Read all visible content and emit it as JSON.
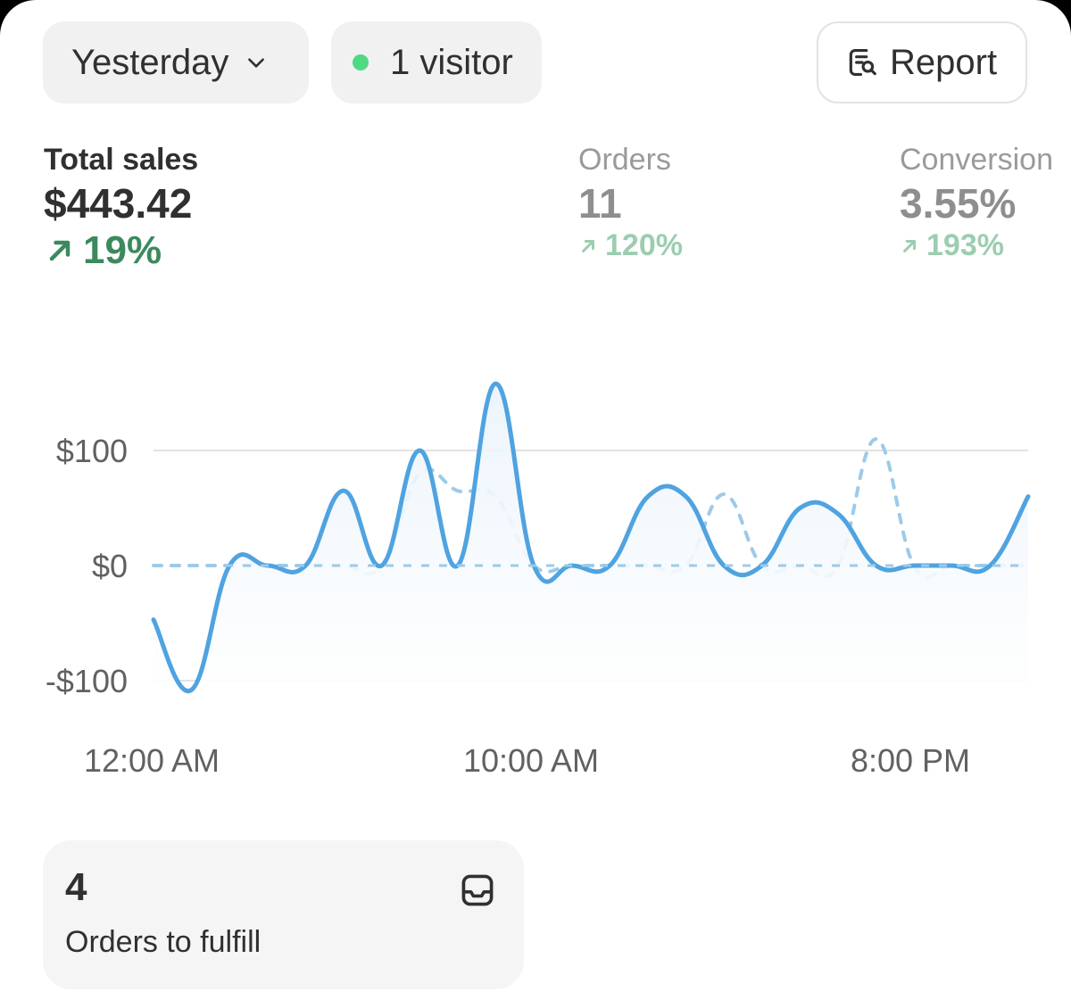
{
  "toolbar": {
    "period_label": "Yesterday",
    "visitors_label": "1 visitor",
    "live_dot_color": "#51d884",
    "report_label": "Report"
  },
  "metrics": {
    "total_sales": {
      "label": "Total sales",
      "value": "$443.42",
      "change": "19%",
      "direction": "up",
      "color": "#3b8a5d"
    },
    "orders": {
      "label": "Orders",
      "value": "11",
      "change": "120%",
      "direction": "up"
    },
    "conversion": {
      "label": "Conversion",
      "value": "3.55%",
      "change": "193%",
      "direction": "up"
    }
  },
  "chart_data": {
    "type": "line",
    "y_ticks": [
      "$100",
      "$0",
      "-$100"
    ],
    "x_ticks": [
      "12:00 AM",
      "10:00 AM",
      "8:00 PM"
    ],
    "ylim": [
      -110,
      160
    ],
    "grid": true,
    "series": [
      {
        "style": "solid",
        "color": "#4fa3e0",
        "points": [
          [
            0,
            -47
          ],
          [
            1,
            -108
          ],
          [
            2,
            0
          ],
          [
            3,
            0
          ],
          [
            4,
            0
          ],
          [
            5,
            65
          ],
          [
            6,
            0
          ],
          [
            7,
            100
          ],
          [
            8,
            0
          ],
          [
            9,
            158
          ],
          [
            10,
            0
          ],
          [
            11,
            0
          ],
          [
            12,
            0
          ],
          [
            13,
            60
          ],
          [
            14,
            60
          ],
          [
            15,
            0
          ],
          [
            16,
            0
          ],
          [
            17,
            50
          ],
          [
            18,
            45
          ],
          [
            19,
            0
          ],
          [
            20,
            0
          ],
          [
            21,
            0
          ],
          [
            22,
            0
          ],
          [
            23,
            60
          ]
        ]
      },
      {
        "style": "dashed",
        "color": "#9ccbe8",
        "points": [
          [
            0,
            0
          ],
          [
            1,
            0
          ],
          [
            2,
            0
          ],
          [
            3,
            0
          ],
          [
            4,
            0
          ],
          [
            5,
            0
          ],
          [
            6,
            0
          ],
          [
            7,
            80
          ],
          [
            8,
            65
          ],
          [
            9,
            60
          ],
          [
            10,
            0
          ],
          [
            11,
            0
          ],
          [
            12,
            0
          ],
          [
            13,
            0
          ],
          [
            14,
            0
          ],
          [
            15,
            62
          ],
          [
            16,
            0
          ],
          [
            17,
            0
          ],
          [
            18,
            0
          ],
          [
            19,
            110
          ],
          [
            20,
            0
          ],
          [
            21,
            0
          ],
          [
            22,
            0
          ],
          [
            23,
            0
          ]
        ]
      }
    ]
  },
  "fulfill": {
    "count": "4",
    "label": "Orders to fulfill"
  }
}
